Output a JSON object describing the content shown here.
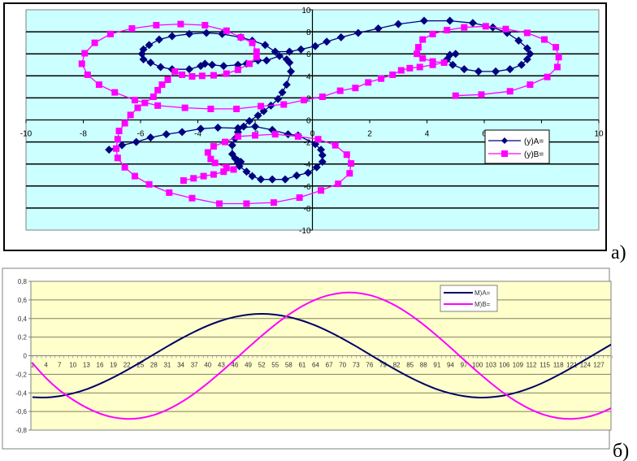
{
  "chart_data": [
    {
      "type": "scatter",
      "panel_label": "а)",
      "xlim": [
        -10,
        10
      ],
      "ylim": [
        -10,
        10
      ],
      "x_ticks": [
        -10,
        -8,
        -6,
        -4,
        -2,
        0,
        2,
        4,
        6,
        8,
        10
      ],
      "y_ticks": [
        -10,
        -8,
        -6,
        -4,
        -2,
        0,
        2,
        4,
        6,
        8,
        10
      ],
      "grid": "horizontal",
      "legend_position": "right",
      "background": "#ccffff",
      "series": [
        {
          "name": "(y)A=",
          "color": "#000080",
          "marker": "diamond",
          "x": [
            5.0,
            4.8,
            4.7,
            4.9,
            5.3,
            5.8,
            6.4,
            6.9,
            7.3,
            7.5,
            7.6,
            7.5,
            7.2,
            6.8,
            6.3,
            5.6,
            4.8,
            3.9,
            3.0,
            2.3,
            1.6,
            1.0,
            0.5,
            0.1,
            -0.4,
            -0.8,
            -1.3,
            -1.65,
            -2.1,
            -2.5,
            -3.15,
            -3.7,
            -4.3,
            -4.9,
            -5.35,
            -5.7,
            -5.9,
            -5.95,
            -5.9,
            -5.65,
            -5.3,
            -4.9,
            -4.3,
            -3.9,
            -3.75,
            -3.5,
            -3.1,
            -2.6,
            -2.3,
            -1.9,
            -1.6,
            -1.15,
            -0.9,
            -0.8,
            -0.75,
            -0.9,
            -1.05,
            -1.2,
            -1.45,
            -1.7,
            -1.9,
            -2.2,
            -2.4,
            -2.6,
            -2.7,
            -2.8,
            -2.8,
            -2.7,
            -2.6,
            -2.5,
            -2.6,
            -2.55,
            -2.3,
            -2.1,
            -1.8,
            -1.4,
            -0.95,
            -0.55,
            -0.15,
            0.15,
            0.35,
            0.35,
            0.3,
            0.1,
            -0.5,
            -0.85,
            -1.4,
            -2.0,
            -2.6,
            -3.3,
            -3.9,
            -4.55,
            -5.1,
            -5.65,
            -6.15,
            -6.65,
            -7.1
          ],
          "y": [
            6.0,
            5.9,
            5.5,
            5.0,
            4.6,
            4.4,
            4.4,
            4.6,
            5.0,
            5.5,
            6.0,
            6.5,
            7.2,
            7.9,
            8.4,
            8.8,
            9.0,
            9.0,
            8.7,
            8.3,
            7.9,
            7.5,
            7.1,
            6.7,
            6.4,
            6.2,
            6.2,
            6.8,
            7.2,
            7.5,
            7.8,
            7.9,
            7.8,
            7.6,
            7.3,
            6.8,
            6.4,
            6.0,
            5.5,
            5.2,
            4.8,
            4.6,
            4.6,
            4.9,
            5.1,
            5.0,
            4.9,
            5.0,
            5.1,
            5.4,
            5.4,
            5.8,
            5.5,
            5.2,
            4.4,
            3.2,
            2.5,
            1.9,
            1.3,
            0.8,
            0.4,
            -0.1,
            -0.6,
            -1.1,
            -1.7,
            -2.3,
            -3.1,
            -3.5,
            -3.7,
            -3.8,
            -3.9,
            -4.2,
            -4.7,
            -5.1,
            -5.4,
            -5.4,
            -5.4,
            -5.05,
            -4.8,
            -4.3,
            -3.8,
            -3.2,
            -2.7,
            -2.2,
            -1.4,
            -1.3,
            -0.9,
            -0.6,
            -0.75,
            -0.7,
            -0.8,
            -1.1,
            -1.3,
            -1.6,
            -2.0,
            -2.3,
            -2.7
          ]
        },
        {
          "name": "(y)B=",
          "color": "#ff00ff",
          "marker": "square",
          "x": [
            -4.5,
            -4.15,
            -3.8,
            -3.45,
            -3.1,
            -2.75,
            -3.0,
            -3.4,
            -3.55,
            -3.65,
            -3.45,
            -3.05,
            -2.6,
            -2.0,
            -1.3,
            -0.5,
            0.2,
            0.8,
            1.2,
            1.35,
            1.3,
            0.9,
            0.3,
            -0.45,
            -1.35,
            -2.3,
            -3.25,
            -4.2,
            -5.0,
            -5.7,
            -6.2,
            -6.55,
            -6.8,
            -6.85,
            -6.8,
            -6.75,
            -6.55,
            -6.35,
            -6.1,
            -5.85,
            -5.55,
            -5.4,
            -5.25,
            -5.05,
            -4.8,
            -4.55,
            -4.2,
            -3.85,
            -3.45,
            -3.0,
            -2.6,
            -2.2,
            -1.95,
            -1.95,
            -2.1,
            -2.5,
            -3.0,
            -3.75,
            -4.6,
            -5.45,
            -6.3,
            -7.05,
            -7.6,
            -7.95,
            -8.05,
            -7.85,
            -7.45,
            -6.9,
            -6.2,
            -5.4,
            -4.45,
            -3.55,
            -2.65,
            -1.8,
            -1.0,
            -0.3,
            0.35,
            0.97,
            1.5,
            1.95,
            2.4,
            2.8,
            3.1,
            3.4,
            3.75,
            4.2,
            4.6,
            4.2,
            3.85,
            3.65,
            3.7,
            3.85,
            4.2,
            4.7,
            5.3,
            6.05,
            6.75,
            7.5,
            8.1,
            8.5,
            8.6,
            8.55,
            8.2,
            7.6,
            6.9,
            5.9,
            5.0
          ],
          "y": [
            -5.5,
            -5.3,
            -5.1,
            -4.95,
            -4.7,
            -4.5,
            -4.3,
            -3.9,
            -3.55,
            -2.95,
            -2.4,
            -2.0,
            -1.5,
            -1.4,
            -1.3,
            -1.5,
            -1.75,
            -2.3,
            -3.15,
            -3.95,
            -4.85,
            -5.8,
            -6.4,
            -7.05,
            -7.5,
            -7.6,
            -7.6,
            -7.1,
            -6.6,
            -5.85,
            -5.1,
            -4.3,
            -3.45,
            -2.6,
            -1.75,
            -1.0,
            -0.3,
            0.45,
            1.1,
            1.55,
            2.1,
            2.7,
            3.2,
            3.65,
            4.4,
            4.1,
            3.95,
            4.0,
            4.05,
            4.2,
            4.55,
            5.1,
            5.7,
            6.2,
            7.0,
            7.5,
            8.1,
            8.6,
            8.7,
            8.6,
            8.3,
            7.8,
            7.0,
            6.05,
            5.1,
            4.1,
            3.2,
            2.5,
            1.8,
            1.3,
            1.1,
            1.0,
            1.0,
            1.25,
            1.4,
            1.8,
            2.1,
            2.65,
            2.9,
            3.4,
            3.75,
            4.1,
            4.5,
            4.7,
            4.8,
            5.0,
            5.2,
            5.3,
            5.6,
            6.0,
            6.6,
            7.3,
            7.8,
            8.15,
            8.4,
            8.5,
            8.25,
            7.9,
            7.3,
            6.6,
            5.7,
            4.8,
            3.9,
            3.2,
            2.6,
            2.3,
            2.2
          ]
        }
      ]
    },
    {
      "type": "line",
      "panel_label": "б)",
      "ylim": [
        -0.8,
        0.8
      ],
      "y_ticks": [
        "-0,8",
        "-0,6",
        "-0,4",
        "-0,2",
        "0",
        "0,2",
        "0,4",
        "0,6",
        "0,8"
      ],
      "y_tick_values": [
        -0.8,
        -0.6,
        -0.4,
        -0.2,
        0,
        0.2,
        0.4,
        0.6,
        0.8
      ],
      "x_tick_labels": [
        "1",
        "4",
        "7",
        "10",
        "13",
        "16",
        "19",
        "22",
        "25",
        "28",
        "31",
        "34",
        "37",
        "40",
        "43",
        "46",
        "49",
        "52",
        "55",
        "58",
        "61",
        "64",
        "67",
        "70",
        "73",
        "76",
        "79",
        "82",
        "85",
        "88",
        "91",
        "94",
        "97",
        "100",
        "103",
        "106",
        "109",
        "112",
        "115",
        "118",
        "121",
        "124",
        "127"
      ],
      "grid": "horizontal",
      "legend_position": "top-right",
      "background": "#ffffcc",
      "x": [
        1,
        4,
        7,
        10,
        13,
        16,
        19,
        22,
        25,
        28,
        31,
        34,
        37,
        40,
        43,
        46,
        49,
        52,
        55,
        58,
        61,
        64,
        67,
        70,
        73,
        76,
        79,
        82,
        85,
        88,
        91,
        94,
        97,
        100,
        103,
        106,
        109,
        112,
        115,
        118,
        121,
        124,
        127,
        130
      ],
      "series": [
        {
          "name": "M)A=",
          "color": "#000066",
          "values": [
            -0.446,
            -0.449,
            -0.435,
            -0.405,
            -0.361,
            -0.302,
            -0.233,
            -0.155,
            -0.072,
            0.014,
            0.1,
            0.182,
            0.257,
            0.323,
            0.377,
            0.417,
            0.442,
            0.45,
            0.442,
            0.417,
            0.377,
            0.324,
            0.258,
            0.183,
            0.101,
            0.014,
            -0.072,
            -0.155,
            -0.233,
            -0.302,
            -0.361,
            -0.405,
            -0.435,
            -0.449,
            -0.446,
            -0.427,
            -0.392,
            -0.343,
            -0.281,
            -0.208,
            -0.128,
            -0.043,
            0.043,
            0.128
          ]
        },
        {
          "name": "M)B=",
          "color": "#ff00ff",
          "values": [
            -0.08,
            -0.24,
            -0.371,
            -0.473,
            -0.558,
            -0.622,
            -0.663,
            -0.68,
            -0.671,
            -0.638,
            -0.581,
            -0.503,
            -0.407,
            -0.295,
            -0.173,
            -0.044,
            0.087,
            0.214,
            0.334,
            0.441,
            0.532,
            0.603,
            0.652,
            0.677,
            0.677,
            0.652,
            0.603,
            0.532,
            0.441,
            0.334,
            0.214,
            0.087,
            -0.044,
            -0.173,
            -0.295,
            -0.407,
            -0.503,
            -0.581,
            -0.638,
            -0.671,
            -0.68,
            -0.663,
            -0.622,
            -0.558
          ]
        }
      ]
    }
  ]
}
